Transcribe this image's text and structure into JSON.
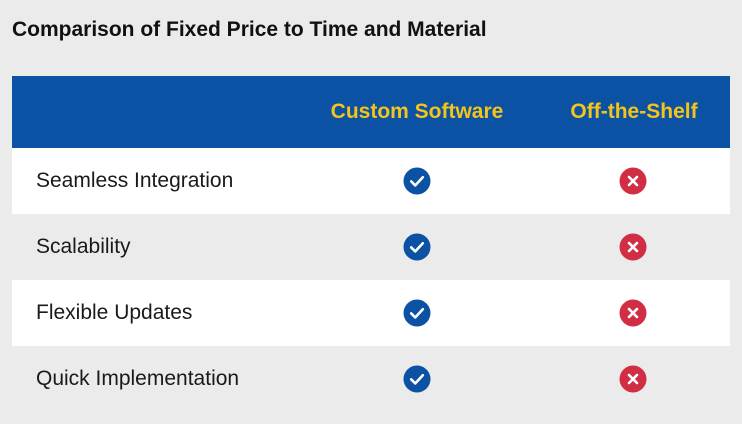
{
  "page": {
    "title": "Comparison of Fixed Price to Time and Material"
  },
  "table": {
    "columns": [
      "",
      "Custom Software",
      "Off-the-Shelf"
    ],
    "rows": [
      {
        "feature": "Seamless Integration",
        "custom_software": "check-icon",
        "off_the_shelf": "x-icon"
      },
      {
        "feature": "Scalability",
        "custom_software": "check-icon",
        "off_the_shelf": "x-icon"
      },
      {
        "feature": "Flexible Updates",
        "custom_software": "check-icon",
        "off_the_shelf": "x-icon"
      },
      {
        "feature": "Quick Implementation",
        "custom_software": "check-icon",
        "off_the_shelf": "x-icon"
      }
    ]
  },
  "colors": {
    "header_background": "#0b52a5",
    "header_text": "#f4c418",
    "check": "#0b52a5",
    "cross": "#d12e44"
  }
}
